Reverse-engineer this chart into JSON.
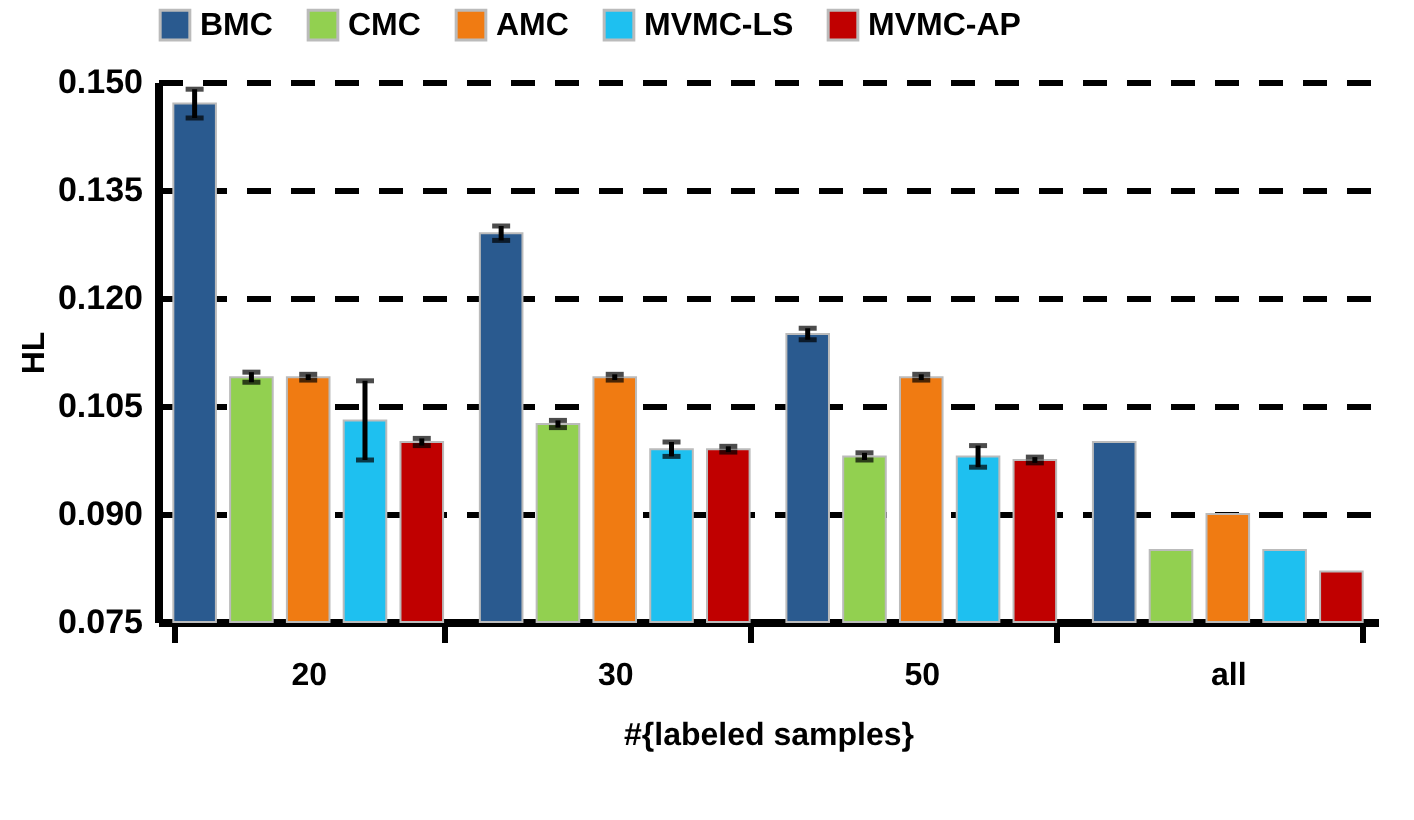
{
  "chart_data": {
    "type": "bar",
    "xlabel": "#{labeled samples}",
    "ylabel": "HL",
    "categories": [
      "20",
      "30",
      "50",
      "all"
    ],
    "series": [
      {
        "name": "BMC",
        "color": "#2a5a8f",
        "values": [
          0.147,
          0.129,
          0.115,
          0.1
        ],
        "errors": [
          0.002,
          0.001,
          0.0008,
          null
        ]
      },
      {
        "name": "CMC",
        "color": "#92d050",
        "values": [
          0.109,
          0.1025,
          0.098,
          0.085
        ],
        "errors": [
          0.0007,
          0.0005,
          0.0005,
          null
        ]
      },
      {
        "name": "AMC",
        "color": "#f07b12",
        "values": [
          0.109,
          0.109,
          0.109,
          0.09
        ],
        "errors": [
          0.0004,
          0.0004,
          0.0004,
          null
        ]
      },
      {
        "name": "MVMC-LS",
        "color": "#1ec0f0",
        "values": [
          0.103,
          0.099,
          0.098,
          0.085
        ],
        "errors": [
          0.0055,
          0.001,
          0.0015,
          null
        ]
      },
      {
        "name": "MVMC-AP",
        "color": "#c00000",
        "values": [
          0.1,
          0.099,
          0.0975,
          0.082
        ],
        "errors": [
          0.0005,
          0.0004,
          0.0004,
          null
        ]
      }
    ],
    "ylim": [
      0.075,
      0.15
    ],
    "yticks": [
      0.075,
      {
        "value": 0.09,
        "label": "0.090"
      },
      0.105,
      {
        "value": 0.12,
        "label": "0.120"
      },
      0.135,
      {
        "value": 0.15,
        "label": "0.150"
      }
    ],
    "grid": "y",
    "legend": "top"
  }
}
